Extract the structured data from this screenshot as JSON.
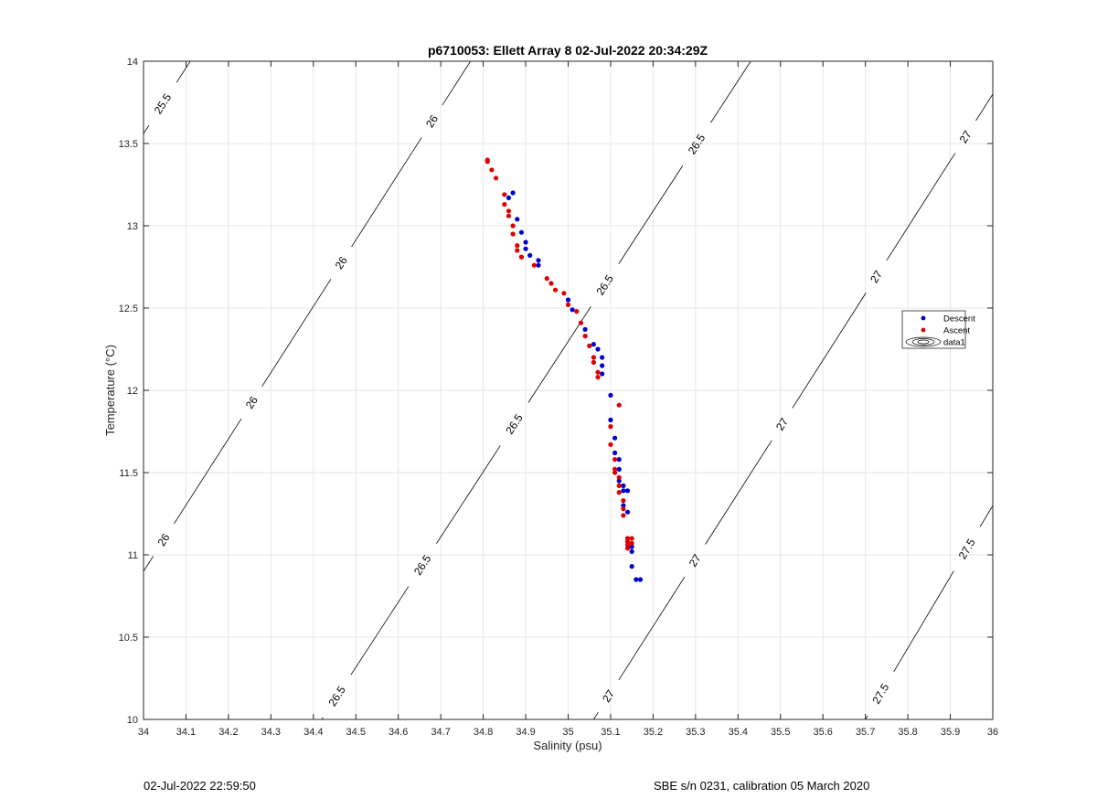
{
  "footer": {
    "left_text": "02-Jul-2022 22:59:50",
    "right_text": "SBE s/n 0231, calibration 05 March 2020"
  },
  "chart_data": {
    "type": "scatter",
    "title": "p6710053: Ellett Array 8 02-Jul-2022 20:34:29Z",
    "xlabel": "Salinity (psu)",
    "ylabel": "Temperature (°C)",
    "xlim": [
      34,
      36
    ],
    "ylim": [
      10,
      14
    ],
    "xticks": [
      34,
      34.1,
      34.2,
      34.3,
      34.4,
      34.5,
      34.6,
      34.7,
      34.8,
      34.9,
      35,
      35.1,
      35.2,
      35.3,
      35.4,
      35.5,
      35.6,
      35.7,
      35.8,
      35.9,
      36
    ],
    "xtick_labels": [
      "34",
      "34.1",
      "34.2",
      "34.3",
      "34.4",
      "34.5",
      "34.6",
      "34.7",
      "34.8",
      "34.9",
      "35",
      "35.1",
      "35.2",
      "35.3",
      "35.4",
      "35.5",
      "35.6",
      "35.7",
      "35.8",
      "35.9",
      "36"
    ],
    "yticks": [
      10,
      10.5,
      11,
      11.5,
      12,
      12.5,
      13,
      13.5,
      14
    ],
    "ytick_labels": [
      "10",
      "10.5",
      "11",
      "11.5",
      "12",
      "12.5",
      "13",
      "13.5",
      "14"
    ],
    "grid": true,
    "legend": {
      "placement": "right",
      "entries": [
        {
          "label": "Descent",
          "color": "#0000cc",
          "marker": "dot"
        },
        {
          "label": "Ascent",
          "color": "#dd0000",
          "marker": "dot"
        },
        {
          "label": "data1",
          "color": "#000000",
          "marker": "contour"
        }
      ]
    },
    "contours": [
      {
        "label": "25.5",
        "line": [
          [
            34,
            13.56
          ],
          [
            34.11,
            14
          ]
        ],
        "label_positions": [
          [
            34.04,
            13.75
          ]
        ]
      },
      {
        "label": "26",
        "line": [
          [
            34,
            10.9
          ],
          [
            34.77,
            14
          ]
        ],
        "label_positions": [
          [
            34.67,
            13.65
          ],
          [
            34.45,
            12.8
          ],
          [
            34.24,
            11.95
          ],
          [
            34.03,
            11.12
          ]
        ]
      },
      {
        "label": "26.5",
        "line": [
          [
            34.42,
            10
          ],
          [
            35.43,
            14
          ]
        ],
        "label_positions": [
          [
            35.3,
            13.5
          ],
          [
            35.08,
            12.65
          ],
          [
            34.87,
            11.8
          ],
          [
            34.65,
            10.95
          ],
          [
            34.45,
            10.15
          ]
        ]
      },
      {
        "label": "27",
        "line": [
          [
            35.06,
            10
          ],
          [
            36,
            13.8
          ]
        ],
        "label_positions": [
          [
            35.93,
            13.55
          ],
          [
            35.72,
            12.7
          ],
          [
            35.5,
            11.8
          ],
          [
            35.29,
            10.98
          ],
          [
            35.09,
            10.15
          ]
        ]
      },
      {
        "label": "27.5",
        "line": [
          [
            35.7,
            10
          ],
          [
            36,
            11.3
          ]
        ],
        "label_positions": [
          [
            35.93,
            11.05
          ],
          [
            35.74,
            10.15
          ]
        ]
      }
    ],
    "series": [
      {
        "name": "Descent",
        "color": "#0000cc",
        "points": [
          [
            34.87,
            13.2
          ],
          [
            34.86,
            13.17
          ],
          [
            34.88,
            13.04
          ],
          [
            34.89,
            12.96
          ],
          [
            34.9,
            12.9
          ],
          [
            34.9,
            12.86
          ],
          [
            34.91,
            12.82
          ],
          [
            34.93,
            12.79
          ],
          [
            34.93,
            12.76
          ],
          [
            35.0,
            12.55
          ],
          [
            35.01,
            12.49
          ],
          [
            35.04,
            12.37
          ],
          [
            35.06,
            12.28
          ],
          [
            35.07,
            12.25
          ],
          [
            35.08,
            12.2
          ],
          [
            35.08,
            12.15
          ],
          [
            35.08,
            12.1
          ],
          [
            35.1,
            11.97
          ],
          [
            35.1,
            11.82
          ],
          [
            35.11,
            11.71
          ],
          [
            35.11,
            11.62
          ],
          [
            35.12,
            11.58
          ],
          [
            35.12,
            11.52
          ],
          [
            35.12,
            11.45
          ],
          [
            35.13,
            11.42
          ],
          [
            35.13,
            11.39
          ],
          [
            35.14,
            11.39
          ],
          [
            35.13,
            11.3
          ],
          [
            35.14,
            11.26
          ],
          [
            35.14,
            11.1
          ],
          [
            35.15,
            11.05
          ],
          [
            35.15,
            11.02
          ],
          [
            35.15,
            10.93
          ],
          [
            35.16,
            10.85
          ],
          [
            35.17,
            10.85
          ]
        ]
      },
      {
        "name": "Ascent",
        "color": "#dd0000",
        "points": [
          [
            34.81,
            13.4
          ],
          [
            34.81,
            13.39
          ],
          [
            34.82,
            13.34
          ],
          [
            34.83,
            13.29
          ],
          [
            34.85,
            13.19
          ],
          [
            34.85,
            13.13
          ],
          [
            34.86,
            13.09
          ],
          [
            34.86,
            13.06
          ],
          [
            34.87,
            13.0
          ],
          [
            34.87,
            12.95
          ],
          [
            34.88,
            12.88
          ],
          [
            34.88,
            12.85
          ],
          [
            34.89,
            12.81
          ],
          [
            34.89,
            12.81
          ],
          [
            34.92,
            12.76
          ],
          [
            34.95,
            12.68
          ],
          [
            34.96,
            12.65
          ],
          [
            34.97,
            12.61
          ],
          [
            34.99,
            12.59
          ],
          [
            35.0,
            12.52
          ],
          [
            35.02,
            12.48
          ],
          [
            35.03,
            12.41
          ],
          [
            35.04,
            12.33
          ],
          [
            35.05,
            12.27
          ],
          [
            35.06,
            12.2
          ],
          [
            35.06,
            12.17
          ],
          [
            35.07,
            12.11
          ],
          [
            35.07,
            12.08
          ],
          [
            35.12,
            11.91
          ],
          [
            35.1,
            11.78
          ],
          [
            35.1,
            11.67
          ],
          [
            35.11,
            11.58
          ],
          [
            35.11,
            11.52
          ],
          [
            35.11,
            11.5
          ],
          [
            35.12,
            11.47
          ],
          [
            35.12,
            11.42
          ],
          [
            35.12,
            11.38
          ],
          [
            35.13,
            11.33
          ],
          [
            35.13,
            11.28
          ],
          [
            35.13,
            11.24
          ],
          [
            35.14,
            11.1
          ],
          [
            35.14,
            11.08
          ],
          [
            35.14,
            11.06
          ],
          [
            35.14,
            11.04
          ],
          [
            35.15,
            11.1
          ],
          [
            35.15,
            11.07
          ]
        ]
      }
    ]
  }
}
